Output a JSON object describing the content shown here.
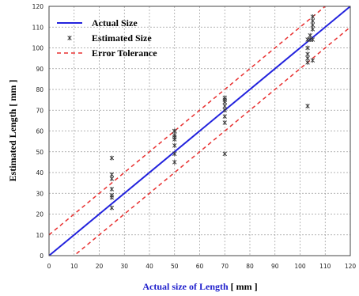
{
  "chart_data": {
    "type": "scatter",
    "title": "",
    "xlabel_parts": [
      {
        "text": "Actual size of  Length",
        "color": "#1f1fcc"
      },
      {
        "text": " [ mm ]",
        "color": "#000000"
      }
    ],
    "ylabel": "Estimated  Length [ mm ]",
    "xlim": [
      0,
      120
    ],
    "ylim": [
      0,
      120
    ],
    "xticks": [
      0,
      10,
      20,
      30,
      40,
      50,
      60,
      70,
      80,
      90,
      100,
      110,
      120
    ],
    "yticks": [
      0,
      10,
      20,
      30,
      40,
      50,
      60,
      70,
      80,
      90,
      100,
      110,
      120
    ],
    "grid": true,
    "legend_position": "top-left",
    "series": [
      {
        "name": "Actual Size",
        "kind": "line",
        "color": "#2222dd",
        "dash": "solid",
        "x": [
          0,
          120
        ],
        "y": [
          0,
          120
        ]
      },
      {
        "name": "Estimated Size",
        "kind": "scatter",
        "marker": "asterisk",
        "color": "#333333",
        "x": [
          25,
          25,
          25,
          25,
          25,
          25,
          25,
          50,
          50,
          50,
          50,
          50,
          50,
          50,
          50,
          70,
          70,
          70,
          70,
          70,
          70,
          70,
          70,
          103,
          103,
          103,
          103,
          103,
          103,
          104,
          104,
          105,
          105,
          105,
          105,
          105,
          105
        ],
        "y": [
          23,
          28,
          29,
          32,
          37,
          39,
          47,
          45,
          49,
          53,
          56,
          57,
          58,
          60,
          60,
          49,
          64,
          67,
          70,
          72,
          74,
          75,
          76,
          72,
          93,
          95,
          97,
          100,
          104,
          104,
          106,
          94,
          104,
          109,
          111,
          113,
          115
        ]
      },
      {
        "name": "Error Tolerance",
        "kind": "band",
        "color": "#e83030",
        "dash": "dashed",
        "offset": 10,
        "x": [
          0,
          120
        ],
        "upper_y": [
          10,
          130
        ],
        "lower_y": [
          -10,
          110
        ]
      }
    ]
  }
}
